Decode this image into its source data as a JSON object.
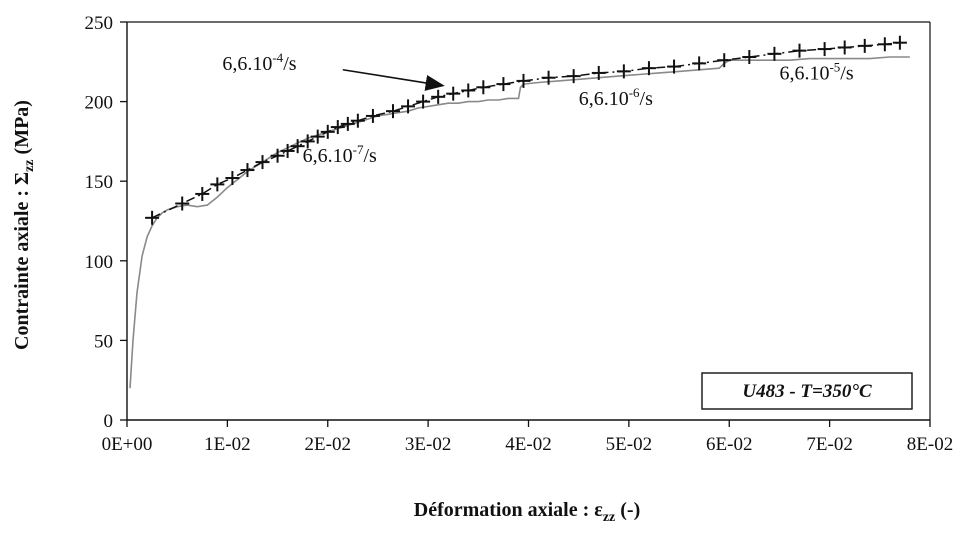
{
  "chart_data": {
    "type": "line",
    "title": "",
    "xlabel": "Déformation axiale : εzz (-)",
    "xlabel_main": "Déformation axiale : ",
    "xlabel_symbol": "ε",
    "xlabel_sub": "zz",
    "xlabel_tail": " (-)",
    "ylabel": "Contrainte axiale :   Σzz (MPa)",
    "ylabel_main": "Contrainte axiale :   ",
    "ylabel_symbol": "Σ",
    "ylabel_sub": "zz",
    "ylabel_tail": " (MPa)",
    "xlim": [
      0,
      0.08
    ],
    "ylim": [
      0,
      250
    ],
    "x_ticks": [
      0,
      0.01,
      0.02,
      0.03,
      0.04,
      0.05,
      0.06,
      0.07,
      0.08
    ],
    "x_tick_labels": [
      "0E+00",
      "1E-02",
      "2E-02",
      "3E-02",
      "4E-02",
      "5E-02",
      "6E-02",
      "7E-02",
      "8E-02"
    ],
    "y_ticks": [
      0,
      50,
      100,
      150,
      200,
      250
    ],
    "y_tick_labels": [
      "0",
      "50",
      "100",
      "150",
      "200",
      "250"
    ],
    "grid": false,
    "series": [
      {
        "name": "",
        "style": "solid-gray",
        "color": "#8a8a8a",
        "x": [
          0.0003,
          0.0006,
          0.001,
          0.0015,
          0.002,
          0.0025,
          0.003,
          0.0035,
          0.004,
          0.005,
          0.006,
          0.007,
          0.008,
          0.009,
          0.01,
          0.011,
          0.012,
          0.013,
          0.014,
          0.015,
          0.016,
          0.017,
          0.018,
          0.019,
          0.02,
          0.021,
          0.022,
          0.023,
          0.024,
          0.025,
          0.026,
          0.027,
          0.028,
          0.029,
          0.03,
          0.031,
          0.032,
          0.033,
          0.034,
          0.035,
          0.036,
          0.037,
          0.038,
          0.039,
          0.0392,
          0.0395,
          0.041,
          0.043,
          0.045,
          0.047,
          0.049,
          0.051,
          0.053,
          0.055,
          0.057,
          0.059,
          0.0595,
          0.06,
          0.062,
          0.064,
          0.066,
          0.068,
          0.07,
          0.072,
          0.074,
          0.076,
          0.078
        ],
        "y": [
          20,
          50,
          80,
          103,
          115,
          122,
          127,
          130,
          132,
          134,
          135,
          134,
          135,
          140,
          146,
          151,
          156,
          160,
          164,
          168,
          171,
          174,
          177,
          179,
          181,
          183,
          185,
          187,
          189,
          191,
          192,
          193,
          194,
          196,
          197,
          198,
          199,
          199,
          200,
          200,
          201,
          201,
          202,
          202,
          209,
          211,
          212,
          213,
          214,
          215,
          216,
          217,
          218,
          219,
          220,
          221,
          224,
          226,
          226,
          226,
          226,
          227,
          227,
          227,
          227,
          228,
          228
        ]
      },
      {
        "name": "",
        "style": "dash-dot-cross",
        "color": "#111111",
        "x": [
          0.0025,
          0.0055,
          0.0075,
          0.009,
          0.0105,
          0.012,
          0.0135,
          0.015,
          0.016,
          0.017,
          0.018,
          0.019,
          0.02,
          0.021,
          0.022,
          0.023,
          0.0245,
          0.0265,
          0.028,
          0.0295,
          0.031,
          0.0325,
          0.034,
          0.0355,
          0.0375,
          0.0395,
          0.042,
          0.0445,
          0.047,
          0.0495,
          0.052,
          0.0545,
          0.057,
          0.0595,
          0.062,
          0.0645,
          0.067,
          0.0695,
          0.0715,
          0.0735,
          0.0755,
          0.077
        ],
        "y": [
          127,
          136,
          142,
          148,
          152,
          157,
          162,
          166,
          169,
          172,
          175,
          178,
          181,
          184,
          186,
          188,
          191,
          194,
          197,
          200,
          203,
          205,
          207,
          209,
          211,
          213,
          215,
          216,
          218,
          219,
          221,
          222,
          224,
          226,
          228,
          230,
          232,
          233,
          234,
          235,
          236,
          237
        ]
      }
    ],
    "annotations": [
      {
        "base": "6,6.10",
        "sup": "-4",
        "tail": "/s",
        "x": 0.0095,
        "y": 220
      },
      {
        "base": "6,6.10",
        "sup": "-7",
        "tail": "/s",
        "x": 0.0175,
        "y": 162
      },
      {
        "base": "6,6.10",
        "sup": "-6",
        "tail": "/s",
        "x": 0.045,
        "y": 198
      },
      {
        "base": "6,6.10",
        "sup": "-5",
        "tail": "/s",
        "x": 0.065,
        "y": 214
      }
    ],
    "arrow": {
      "from": [
        0.0215,
        220
      ],
      "to": [
        0.0315,
        210
      ]
    },
    "legend": {
      "text": "U483 - T=350°C",
      "placement": "bottom-right"
    }
  }
}
